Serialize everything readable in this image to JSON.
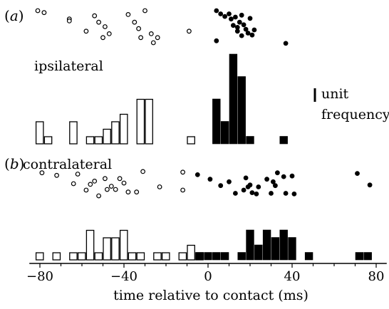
{
  "chart_data": {
    "type": "scatter_histogram",
    "x_axis": {
      "label": "time relative to contact (ms)",
      "range": [
        -85,
        85
      ],
      "ticks": [
        -80,
        -40,
        0,
        40,
        80
      ],
      "tick_labels": [
        "−80",
        "−40",
        "0",
        "40",
        "80"
      ]
    },
    "scale_bar": {
      "label_line1": "unit",
      "label_line2": "frequency",
      "units": 1
    },
    "panels": [
      {
        "id": "a",
        "letter_open": "(",
        "letter": "a",
        "letter_close": ")",
        "condition": "ipsilateral",
        "raster": {
          "rows": 7,
          "open": [
            {
              "t": -81,
              "r": 0
            },
            {
              "t": -78,
              "r": 0.3
            },
            {
              "t": -66,
              "r": 1.3
            },
            {
              "t": -66,
              "r": 1.6
            },
            {
              "t": -58,
              "r": 3.2
            },
            {
              "t": -54,
              "r": 0.8
            },
            {
              "t": -52,
              "r": 1.8
            },
            {
              "t": -50,
              "r": 4.2
            },
            {
              "t": -49,
              "r": 2.5
            },
            {
              "t": -47,
              "r": 3.6
            },
            {
              "t": -38,
              "r": 0.6
            },
            {
              "t": -35,
              "r": 1.8
            },
            {
              "t": -33,
              "r": 2.8
            },
            {
              "t": -32,
              "r": 4.2
            },
            {
              "t": -30,
              "r": 0
            },
            {
              "t": -27,
              "r": 3.6
            },
            {
              "t": -26,
              "r": 5
            },
            {
              "t": -24,
              "r": 4.2
            },
            {
              "t": -9,
              "r": 3.2
            }
          ],
          "filled": [
            {
              "t": 4,
              "r": 0
            },
            {
              "t": 6,
              "r": 0.5
            },
            {
              "t": 8,
              "r": 0.9
            },
            {
              "t": 10,
              "r": 0.5
            },
            {
              "t": 11,
              "r": 1.3
            },
            {
              "t": 12,
              "r": 2.3
            },
            {
              "t": 13,
              "r": 1
            },
            {
              "t": 14,
              "r": 3.2
            },
            {
              "t": 14,
              "r": 2.6
            },
            {
              "t": 15,
              "r": 1.8
            },
            {
              "t": 16,
              "r": 0.7
            },
            {
              "t": 16,
              "r": 3.9
            },
            {
              "t": 17,
              "r": 2.2
            },
            {
              "t": 18,
              "r": 2.9
            },
            {
              "t": 19,
              "r": 3.5
            },
            {
              "t": 20,
              "r": 1.2
            },
            {
              "t": 21,
              "r": 3.8
            },
            {
              "t": 22,
              "r": 3
            },
            {
              "t": 4,
              "r": 4.7
            },
            {
              "t": 37,
              "r": 5.1
            }
          ]
        },
        "histogram": {
          "bin_width": 4,
          "open_bins": [
            {
              "start": -82,
              "count": 3
            },
            {
              "start": -78,
              "count": 1
            },
            {
              "start": -66,
              "count": 3
            },
            {
              "start": -58,
              "count": 1
            },
            {
              "start": -54,
              "count": 1
            },
            {
              "start": -50,
              "count": 2
            },
            {
              "start": -46,
              "count": 3
            },
            {
              "start": -42,
              "count": 4
            },
            {
              "start": -34,
              "count": 6
            },
            {
              "start": -30,
              "count": 6
            },
            {
              "start": -10,
              "count": 1
            }
          ],
          "filled_bins": [
            {
              "start": 2,
              "count": 6
            },
            {
              "start": 6,
              "count": 3
            },
            {
              "start": 10,
              "count": 12
            },
            {
              "start": 14,
              "count": 9
            },
            {
              "start": 18,
              "count": 1
            },
            {
              "start": 34,
              "count": 1
            }
          ]
        }
      },
      {
        "id": "b",
        "letter_open": "(",
        "letter": "b",
        "letter_close": ")",
        "condition": "contralateral",
        "raster": {
          "rows": 5,
          "open": [
            {
              "t": -79,
              "r": 0.3
            },
            {
              "t": -72,
              "r": 0.7
            },
            {
              "t": -64,
              "r": 2
            },
            {
              "t": -62,
              "r": 0.5
            },
            {
              "t": -58,
              "r": 3
            },
            {
              "t": -56,
              "r": 2.1
            },
            {
              "t": -54,
              "r": 1.6
            },
            {
              "t": -52,
              "r": 3.9
            },
            {
              "t": -49,
              "r": 1.2
            },
            {
              "t": -48,
              "r": 2.9
            },
            {
              "t": -46,
              "r": 2.4
            },
            {
              "t": -44,
              "r": 2.9
            },
            {
              "t": -42,
              "r": 1.2
            },
            {
              "t": -40,
              "r": 1.9
            },
            {
              "t": -38,
              "r": 3.3
            },
            {
              "t": -34,
              "r": 3.3
            },
            {
              "t": -31,
              "r": 0.1
            },
            {
              "t": -23,
              "r": 2.5
            },
            {
              "t": -12,
              "r": 0.2
            },
            {
              "t": -12,
              "r": 3
            }
          ],
          "filled": [
            {
              "t": -5,
              "r": 0.6
            },
            {
              "t": 1,
              "r": 1.3
            },
            {
              "t": 6,
              "r": 2.3
            },
            {
              "t": 10,
              "r": 1.7
            },
            {
              "t": 17,
              "r": 3
            },
            {
              "t": 18,
              "r": 1.1
            },
            {
              "t": 19,
              "r": 2.5
            },
            {
              "t": 20,
              "r": 2.2
            },
            {
              "t": 21,
              "r": 3.4
            },
            {
              "t": 23,
              "r": 3.6
            },
            {
              "t": 24,
              "r": 2.5
            },
            {
              "t": 28,
              "r": 1.3
            },
            {
              "t": 30,
              "r": 3.5
            },
            {
              "t": 31,
              "r": 1.7
            },
            {
              "t": 32,
              "r": 2.3
            },
            {
              "t": 33,
              "r": 0.3
            },
            {
              "t": 36,
              "r": 0.9
            },
            {
              "t": 37,
              "r": 3.5
            },
            {
              "t": 40,
              "r": 0.8
            },
            {
              "t": 41,
              "r": 3.6
            },
            {
              "t": 71,
              "r": 0.4
            },
            {
              "t": 77,
              "r": 2.2
            },
            {
              "t": 13,
              "r": 3.5
            }
          ]
        },
        "histogram": {
          "bin_width": 4,
          "open_bins": [
            {
              "start": -82,
              "count": 1
            },
            {
              "start": -74,
              "count": 1
            },
            {
              "start": -66,
              "count": 1
            },
            {
              "start": -62,
              "count": 1
            },
            {
              "start": -58,
              "count": 4
            },
            {
              "start": -54,
              "count": 1
            },
            {
              "start": -50,
              "count": 3
            },
            {
              "start": -46,
              "count": 3
            },
            {
              "start": -42,
              "count": 4
            },
            {
              "start": -38,
              "count": 1
            },
            {
              "start": -34,
              "count": 1
            },
            {
              "start": -26,
              "count": 1
            },
            {
              "start": -22,
              "count": 1
            },
            {
              "start": -14,
              "count": 1
            },
            {
              "start": -10,
              "count": 2
            },
            {
              "start": -6,
              "count": 1
            }
          ],
          "filled_bins": [
            {
              "start": -6,
              "count": 1
            },
            {
              "start": -2,
              "count": 1
            },
            {
              "start": 2,
              "count": 1
            },
            {
              "start": 6,
              "count": 1
            },
            {
              "start": 14,
              "count": 1
            },
            {
              "start": 18,
              "count": 4
            },
            {
              "start": 22,
              "count": 2
            },
            {
              "start": 26,
              "count": 4
            },
            {
              "start": 30,
              "count": 3
            },
            {
              "start": 34,
              "count": 4
            },
            {
              "start": 38,
              "count": 3
            },
            {
              "start": 46,
              "count": 1
            },
            {
              "start": 70,
              "count": 1
            },
            {
              "start": 74,
              "count": 1
            }
          ]
        }
      }
    ]
  }
}
